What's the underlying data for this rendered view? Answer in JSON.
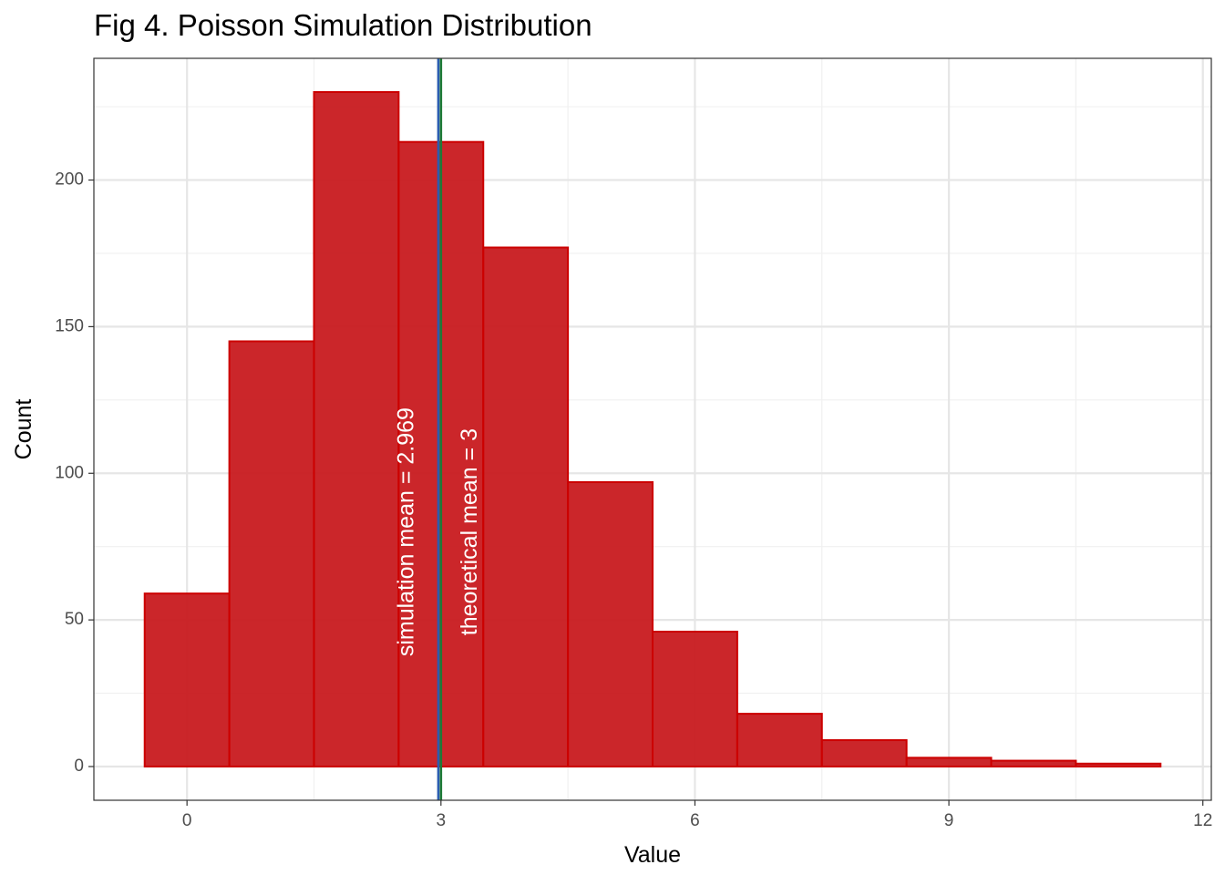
{
  "chart_data": {
    "type": "bar",
    "title": "Fig 4. Poisson Simulation Distribution",
    "xlabel": "Value",
    "ylabel": "Count",
    "bin_width": 1,
    "x": [
      0,
      1,
      2,
      3,
      4,
      5,
      6,
      7,
      8,
      9,
      10,
      11
    ],
    "values": [
      59,
      145,
      230,
      213,
      177,
      97,
      46,
      18,
      9,
      3,
      2,
      1
    ],
    "xlim": [
      -1.1,
      12.1
    ],
    "ylim": [
      -11.5,
      241.5
    ],
    "x_ticks": [
      0,
      3,
      6,
      9,
      12
    ],
    "y_ticks": [
      0,
      50,
      100,
      150,
      200
    ],
    "grid": true,
    "bar_fill": "#c7161a",
    "bar_outline": "#cc0000",
    "vlines": [
      {
        "x": 2.969,
        "color": "#2a5cb0",
        "label": "simulation mean = 2.969",
        "label_x": 2.6
      },
      {
        "x": 3,
        "color": "#1e7a36",
        "label": "theoretical mean = 3",
        "label_x": 3.35
      }
    ]
  }
}
